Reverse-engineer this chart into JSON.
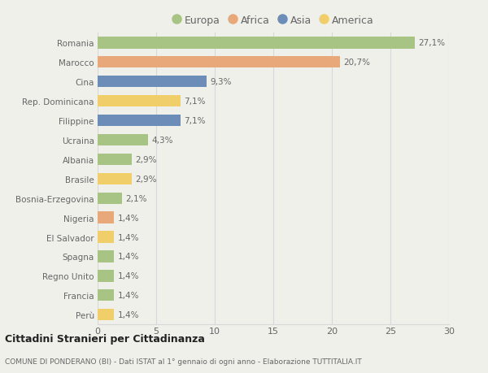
{
  "countries": [
    "Romania",
    "Marocco",
    "Cina",
    "Rep. Dominicana",
    "Filippine",
    "Ucraina",
    "Albania",
    "Brasile",
    "Bosnia-Erzegovina",
    "Nigeria",
    "El Salvador",
    "Spagna",
    "Regno Unito",
    "Francia",
    "Perù"
  ],
  "values": [
    27.1,
    20.7,
    9.3,
    7.1,
    7.1,
    4.3,
    2.9,
    2.9,
    2.1,
    1.4,
    1.4,
    1.4,
    1.4,
    1.4,
    1.4
  ],
  "labels": [
    "27,1%",
    "20,7%",
    "9,3%",
    "7,1%",
    "7,1%",
    "4,3%",
    "2,9%",
    "2,9%",
    "2,1%",
    "1,4%",
    "1,4%",
    "1,4%",
    "1,4%",
    "1,4%",
    "1,4%"
  ],
  "continents": [
    "Europa",
    "Africa",
    "Asia",
    "America",
    "Asia",
    "Europa",
    "Europa",
    "America",
    "Europa",
    "Africa",
    "America",
    "Europa",
    "Europa",
    "Europa",
    "America"
  ],
  "continent_colors": {
    "Europa": "#a8c484",
    "Africa": "#e8a87a",
    "Asia": "#6b8db8",
    "America": "#f0ce6a"
  },
  "legend_order": [
    "Europa",
    "Africa",
    "Asia",
    "America"
  ],
  "background_color": "#f0f0eb",
  "xlim": [
    0,
    30
  ],
  "xticks": [
    0,
    5,
    10,
    15,
    20,
    25,
    30
  ],
  "title": "Cittadini Stranieri per Cittadinanza",
  "subtitle": "COMUNE DI PONDERANO (BI) - Dati ISTAT al 1° gennaio di ogni anno - Elaborazione TUTTITALIA.IT",
  "bar_height": 0.6,
  "grid_color": "#d8d8d8",
  "text_color": "#666666",
  "label_fontsize": 7.5,
  "ytick_fontsize": 7.5,
  "xtick_fontsize": 8
}
